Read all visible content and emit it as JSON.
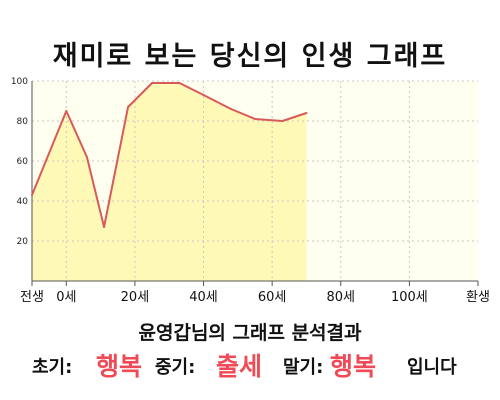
{
  "title": "재미로 보는 당신의 인생 그래프",
  "summary": {
    "title": "윤영갑님의 그래프 분석결과",
    "early_label": "초기:",
    "early_value": "행복",
    "mid_label": "중기:",
    "mid_value": "출세",
    "late_label": "말기:",
    "late_value": "행복",
    "ending": "입니다"
  },
  "colors": {
    "accent": "#ef4a55",
    "line": "#d95a5a",
    "fill": "#fff9b8",
    "background": "#fffff0"
  },
  "chart_data": {
    "type": "area",
    "x": [
      -10,
      0,
      6,
      11,
      18,
      25,
      33,
      40,
      48,
      55,
      63,
      70
    ],
    "values": [
      43,
      85,
      62,
      27,
      87,
      99,
      99,
      93,
      86,
      81,
      80,
      84
    ],
    "x_ticks": [
      {
        "x": -10,
        "label": "전생"
      },
      {
        "x": 0,
        "label": "0세"
      },
      {
        "x": 20,
        "label": "20세"
      },
      {
        "x": 40,
        "label": "40세"
      },
      {
        "x": 60,
        "label": "60세"
      },
      {
        "x": 80,
        "label": "80세"
      },
      {
        "x": 100,
        "label": "100세"
      },
      {
        "x": 120,
        "label": "환생"
      }
    ],
    "y_ticks": [
      20,
      40,
      60,
      80,
      100
    ],
    "ylim": [
      0,
      100
    ],
    "grid": true
  }
}
